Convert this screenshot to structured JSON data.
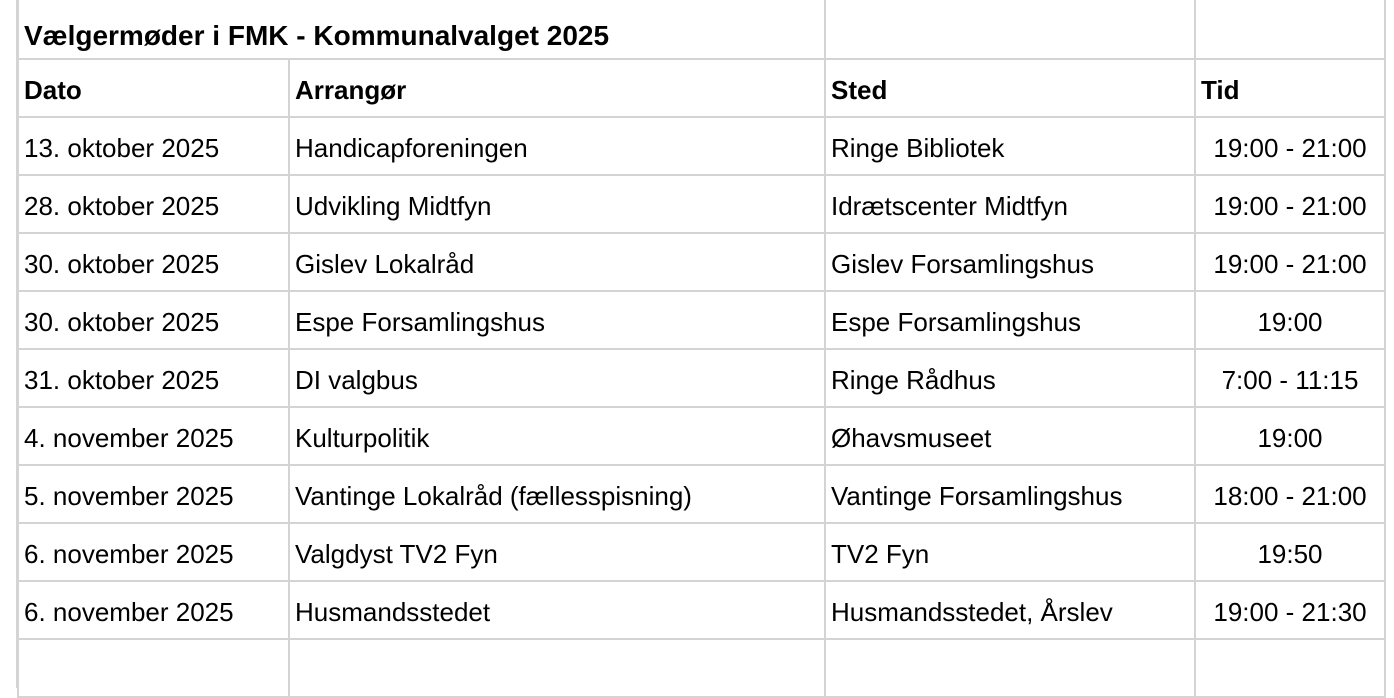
{
  "title": "Vælgermøder i FMK - Kommunalvalget 2025",
  "headers": {
    "dato": "Dato",
    "arrangor": "Arrangør",
    "sted": "Sted",
    "tid": "Tid"
  },
  "rows": [
    {
      "dato": "13. oktober 2025",
      "arrangor": "Handicapforeningen",
      "sted": "Ringe Bibliotek",
      "tid": "19:00 - 21:00"
    },
    {
      "dato": "28. oktober 2025",
      "arrangor": "Udvikling Midtfyn",
      "sted": "Idrætscenter Midtfyn",
      "tid": "19:00 - 21:00"
    },
    {
      "dato": "30. oktober 2025",
      "arrangor": "Gislev Lokalråd",
      "sted": "Gislev Forsamlingshus",
      "tid": "19:00 - 21:00"
    },
    {
      "dato": "30. oktober 2025",
      "arrangor": "Espe Forsamlingshus",
      "sted": "Espe Forsamlingshus",
      "tid": "19:00"
    },
    {
      "dato": "31. oktober 2025",
      "arrangor": "DI valgbus",
      "sted": "Ringe Rådhus",
      "tid": "7:00 - 11:15"
    },
    {
      "dato": "4. november 2025",
      "arrangor": "Kulturpolitik",
      "sted": "Øhavsmuseet",
      "tid": "19:00"
    },
    {
      "dato": "5. november 2025",
      "arrangor": "Vantinge Lokalråd (fællesspisning)",
      "sted": "Vantinge Forsamlingshus",
      "tid": "18:00 - 21:00"
    },
    {
      "dato": "6. november 2025",
      "arrangor": "Valgdyst TV2 Fyn",
      "sted": "TV2 Fyn",
      "tid": "19:50"
    },
    {
      "dato": "6. november 2025",
      "arrangor": "Husmandsstedet",
      "sted": "Husmandsstedet, Årslev",
      "tid": "19:00 - 21:30"
    }
  ]
}
